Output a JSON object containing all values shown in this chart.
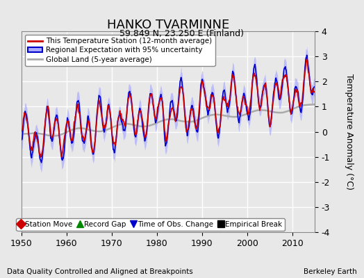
{
  "title": "HANKO TVARMINNE",
  "subtitle": "59.849 N, 23.250 E (Finland)",
  "ylabel": "Temperature Anomaly (°C)",
  "xlabel_left": "Data Quality Controlled and Aligned at Breakpoints",
  "xlabel_right": "Berkeley Earth",
  "ylim": [
    -4,
    4
  ],
  "xlim": [
    1950,
    2015
  ],
  "xticks": [
    1950,
    1960,
    1970,
    1980,
    1990,
    2000,
    2010
  ],
  "yticks": [
    -4,
    -3,
    -2,
    -1,
    0,
    1,
    2,
    3,
    4
  ],
  "bg_color": "#e8e8e8",
  "plot_bg_color": "#e8e8e8",
  "grid_color": "#ffffff",
  "red_color": "#cc0000",
  "blue_color": "#0000cc",
  "blue_fill_color": "#aaaaff",
  "gray_color": "#aaaaaa",
  "legend_items": [
    "This Temperature Station (12-month average)",
    "Regional Expectation with 95% uncertainty",
    "Global Land (5-year average)"
  ],
  "marker_legend": [
    {
      "marker": "D",
      "color": "#cc0000",
      "label": "Station Move"
    },
    {
      "marker": "^",
      "color": "#008800",
      "label": "Record Gap"
    },
    {
      "marker": "v",
      "color": "#0000cc",
      "label": "Time of Obs. Change"
    },
    {
      "marker": "s",
      "color": "#000000",
      "label": "Empirical Break"
    }
  ]
}
